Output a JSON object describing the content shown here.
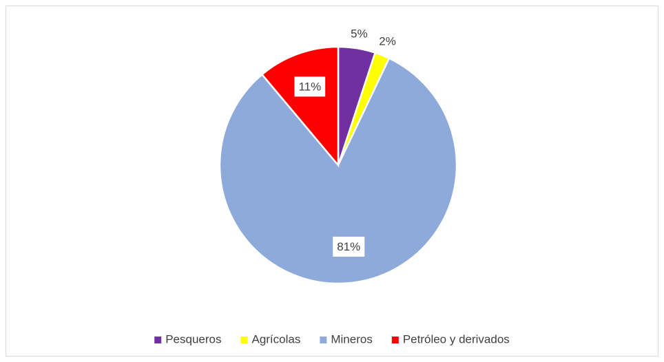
{
  "chart_data": {
    "type": "pie",
    "categories": [
      "Pesqueros",
      "Agrícolas",
      "Mineros",
      "Petróleo y derivados"
    ],
    "values": [
      5,
      2,
      81,
      11
    ],
    "value_labels": [
      "5%",
      "2%",
      "81%",
      "11%"
    ],
    "colors": [
      "#7030a0",
      "#ffff00",
      "#8eaadb",
      "#ff0000"
    ],
    "legend": "bottom"
  }
}
